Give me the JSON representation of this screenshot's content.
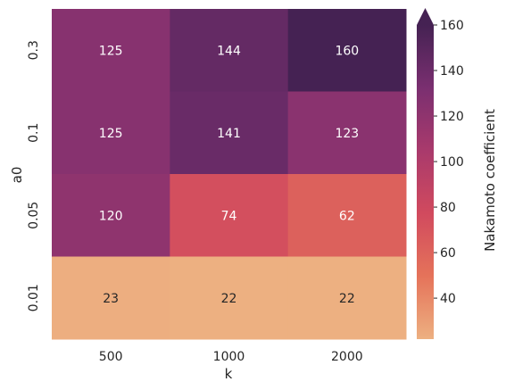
{
  "chart_data": {
    "type": "heatmap",
    "title": "",
    "xlabel": "k",
    "ylabel": "a0",
    "x_categories": [
      "500",
      "1000",
      "2000"
    ],
    "y_categories": [
      "0.3",
      "0.1",
      "0.05",
      "0.01"
    ],
    "values": [
      [
        125,
        144,
        160
      ],
      [
        125,
        141,
        123
      ],
      [
        120,
        74,
        62
      ],
      [
        23,
        22,
        22
      ]
    ],
    "colorbar": {
      "label": "Nakamoto coefficient",
      "range": [
        22,
        160
      ],
      "ticks": [
        40,
        60,
        80,
        100,
        120,
        140,
        160
      ],
      "extend": "max",
      "colormap": "flare",
      "colors": [
        "#edb081",
        "#e5735a",
        "#d14a5e",
        "#a93a6c",
        "#7a2f70",
        "#452253"
      ]
    }
  }
}
